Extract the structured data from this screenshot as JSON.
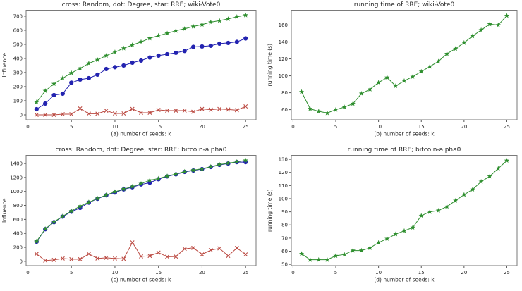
{
  "figure": {
    "background": "#ffffff",
    "spine_color": "#7a7a7a",
    "tick_color": "#555555",
    "text_color": "#262626",
    "marker_legend": {
      "cross": "Random",
      "dot": "Degree",
      "star": "RRE"
    }
  },
  "chart_data": [
    {
      "id": "a",
      "type": "line",
      "title": "cross: Random, dot: Degree, star: RRE; wiki-Vote0",
      "xlabel": "(a) number of seeds: k",
      "ylabel": "Influence",
      "grid": false,
      "legend": "none",
      "x": [
        1,
        2,
        3,
        4,
        5,
        6,
        7,
        8,
        9,
        10,
        11,
        12,
        13,
        14,
        15,
        16,
        17,
        18,
        19,
        20,
        21,
        22,
        23,
        24,
        25
      ],
      "xticks": [
        0,
        5,
        10,
        15,
        20,
        25
      ],
      "yticks": [
        0,
        100,
        200,
        300,
        400,
        500,
        600,
        700
      ],
      "xlim": [
        -0.2,
        26.2
      ],
      "ylim": [
        -35,
        742
      ],
      "series": [
        {
          "name": "Random",
          "marker": "cross",
          "color": "#bb4a42",
          "values": [
            0,
            0,
            0,
            5,
            5,
            45,
            8,
            8,
            30,
            10,
            10,
            42,
            15,
            15,
            35,
            30,
            30,
            30,
            22,
            42,
            37,
            42,
            38,
            33,
            60
          ]
        },
        {
          "name": "Degree",
          "marker": "dot",
          "color": "#2323b0",
          "values": [
            40,
            80,
            140,
            150,
            228,
            250,
            260,
            285,
            325,
            338,
            350,
            370,
            385,
            407,
            420,
            430,
            440,
            453,
            482,
            485,
            490,
            505,
            510,
            517,
            542
          ]
        },
        {
          "name": "RRE",
          "marker": "star",
          "color": "#2f8f2f",
          "values": [
            90,
            170,
            220,
            260,
            297,
            330,
            365,
            390,
            420,
            445,
            472,
            495,
            517,
            543,
            562,
            578,
            597,
            610,
            627,
            640,
            657,
            668,
            680,
            695,
            707
          ]
        }
      ]
    },
    {
      "id": "b",
      "type": "line",
      "title": "running time of RRE; wiki-Vote0",
      "xlabel": "(b) number of seeds: k",
      "ylabel": "running time (s)",
      "grid": false,
      "legend": "none",
      "x": [
        1,
        2,
        3,
        4,
        5,
        6,
        7,
        8,
        9,
        10,
        11,
        12,
        13,
        14,
        15,
        16,
        17,
        18,
        19,
        20,
        21,
        22,
        23,
        24,
        25
      ],
      "xticks": [
        0,
        5,
        10,
        15,
        20,
        25
      ],
      "yticks": [
        60,
        80,
        100,
        120,
        140,
        160
      ],
      "xlim": [
        -0.2,
        26.2
      ],
      "ylim": [
        48,
        177.5
      ],
      "series": [
        {
          "name": "RRE",
          "marker": "star",
          "color": "#2f8f2f",
          "values": [
            81,
            61,
            58,
            56,
            60,
            63,
            67,
            79,
            84,
            92,
            98,
            88,
            94,
            99,
            105,
            111,
            117,
            126,
            132,
            139,
            147,
            154,
            161,
            160,
            171
          ]
        }
      ]
    },
    {
      "id": "c",
      "type": "line",
      "title": "cross: Random, dot: Degree, star: RRE; bitcoin-alpha0",
      "xlabel": "(c) number of seeds: k",
      "ylabel": "Influence",
      "grid": false,
      "legend": "none",
      "x": [
        1,
        2,
        3,
        4,
        5,
        6,
        7,
        8,
        9,
        10,
        11,
        12,
        13,
        14,
        15,
        16,
        17,
        18,
        19,
        20,
        21,
        22,
        23,
        24,
        25
      ],
      "xticks": [
        0,
        5,
        10,
        15,
        20,
        25
      ],
      "yticks": [
        0,
        200,
        400,
        600,
        800,
        1000,
        1200,
        1400
      ],
      "xlim": [
        -0.2,
        26.2
      ],
      "ylim": [
        -62,
        1517
      ],
      "series": [
        {
          "name": "Random",
          "marker": "cross",
          "color": "#bb4a42",
          "values": [
            105,
            10,
            20,
            40,
            30,
            30,
            105,
            40,
            50,
            40,
            35,
            270,
            70,
            78,
            125,
            65,
            68,
            178,
            192,
            98,
            160,
            185,
            78,
            190,
            98
          ]
        },
        {
          "name": "Degree",
          "marker": "dot",
          "color": "#2323b0",
          "values": [
            280,
            460,
            560,
            640,
            710,
            765,
            840,
            895,
            945,
            985,
            1030,
            1060,
            1100,
            1125,
            1175,
            1215,
            1245,
            1280,
            1300,
            1320,
            1350,
            1380,
            1400,
            1420,
            1420
          ]
        },
        {
          "name": "RRE",
          "marker": "star",
          "color": "#2f8f2f",
          "values": [
            285,
            465,
            565,
            645,
            720,
            790,
            845,
            900,
            950,
            995,
            1035,
            1070,
            1110,
            1160,
            1185,
            1220,
            1250,
            1285,
            1305,
            1325,
            1355,
            1385,
            1405,
            1425,
            1445
          ]
        }
      ]
    },
    {
      "id": "d",
      "type": "line",
      "title": "running time of RRE; bitcoin-alpha0",
      "xlabel": "(d) number of seeds: k",
      "ylabel": "running time (s)",
      "grid": false,
      "legend": "none",
      "x": [
        1,
        2,
        3,
        4,
        5,
        6,
        7,
        8,
        9,
        10,
        11,
        12,
        13,
        14,
        15,
        16,
        17,
        18,
        19,
        20,
        21,
        22,
        23,
        24,
        25
      ],
      "xticks": [
        0,
        5,
        10,
        15,
        20,
        25
      ],
      "yticks": [
        50,
        60,
        70,
        80,
        90,
        100,
        110,
        120,
        130
      ],
      "xlim": [
        -0.2,
        26.2
      ],
      "ylim": [
        49,
        133
      ],
      "series": [
        {
          "name": "RRE",
          "marker": "star",
          "color": "#2f8f2f",
          "values": [
            58,
            53.5,
            53.5,
            53.5,
            56.5,
            57.5,
            60.5,
            60.5,
            62.5,
            66.5,
            69.5,
            73,
            75.5,
            78,
            87,
            90,
            91,
            94,
            98.5,
            103,
            107,
            113,
            117,
            123,
            129
          ]
        }
      ]
    }
  ]
}
